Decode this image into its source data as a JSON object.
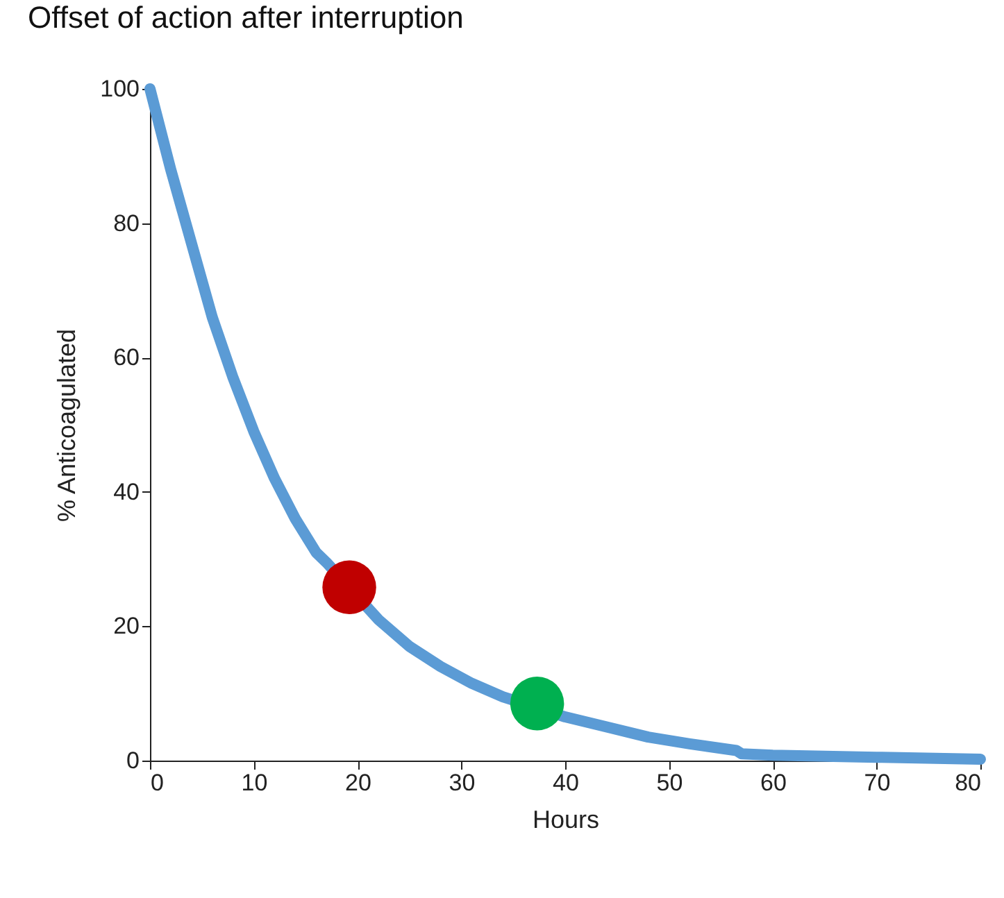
{
  "chart_data": {
    "type": "line",
    "title": "Offset of action after interruption",
    "xlabel": "Hours",
    "ylabel": "% Anticoagulated",
    "xlim": [
      0,
      80
    ],
    "xticks": [
      0,
      10,
      20,
      30,
      40,
      50,
      60,
      70,
      80
    ],
    "ylim": [
      0,
      100
    ],
    "yticks": [
      0,
      20,
      40,
      60,
      80,
      100
    ],
    "grid": false,
    "line_style": "solid",
    "series": [
      {
        "type": "line",
        "color": "#5b9bd5",
        "x": [
          0,
          2,
          4,
          6,
          8,
          10,
          12,
          14,
          16,
          17,
          22,
          25,
          28,
          31,
          34,
          35,
          40,
          44,
          48,
          52,
          56.5,
          57,
          60,
          70,
          80
        ],
        "values": [
          100,
          88,
          77,
          66,
          57,
          49,
          42,
          36,
          31,
          29.5,
          21,
          17,
          14,
          11.5,
          9.5,
          9,
          6.5,
          5,
          3.5,
          2.5,
          1.5,
          1,
          0.8,
          0.5,
          0.2
        ]
      },
      {
        "type": "scatter",
        "color": "#c00000",
        "x": [
          19.2
        ],
        "values": [
          25.8
        ]
      },
      {
        "type": "scatter",
        "color": "#00b050",
        "x": [
          37.3
        ],
        "values": [
          8.5
        ]
      }
    ]
  }
}
